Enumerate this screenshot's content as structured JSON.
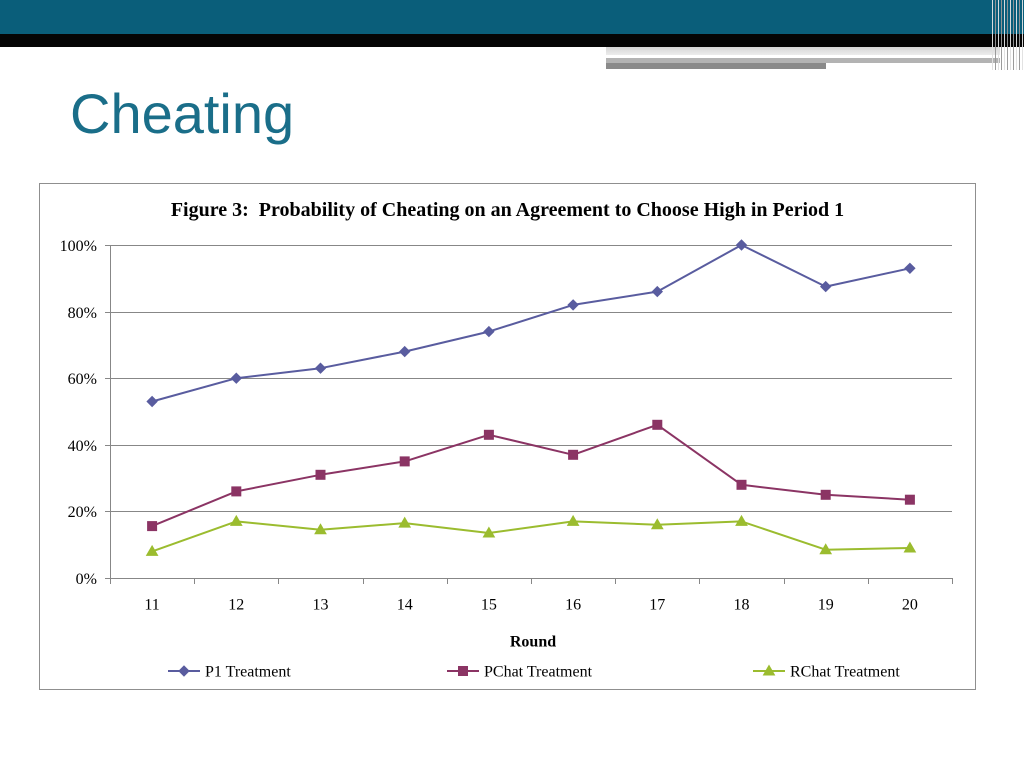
{
  "slide": {
    "title": "Cheating"
  },
  "colors": {
    "header_band": "#0a5e7a",
    "header_dark_band": "#050505",
    "title": "#1a6e89",
    "gridline": "#878787",
    "chart_border": "#8f8f8f"
  },
  "chart_data": {
    "type": "line",
    "title": "Figure 3:  Probability of Cheating on an Agreement to Choose High in Period 1",
    "xlabel": "Round",
    "categories": [
      "11",
      "12",
      "13",
      "14",
      "15",
      "16",
      "17",
      "18",
      "19",
      "20"
    ],
    "ylim": [
      0,
      100
    ],
    "y_ticks": [
      0,
      20,
      40,
      60,
      80,
      100
    ],
    "y_tick_labels": [
      "0%",
      "20%",
      "40%",
      "60%",
      "80%",
      "100%"
    ],
    "grid": true,
    "legend_position": "bottom",
    "series": [
      {
        "name": "P1 Treatment",
        "color": "#595c9f",
        "marker": "diamond",
        "values": [
          53,
          60,
          63,
          68,
          74,
          82,
          86,
          100,
          87.5,
          93
        ]
      },
      {
        "name": "PChat Treatment",
        "color": "#8b3464",
        "marker": "square",
        "values": [
          15.6,
          26,
          31,
          35,
          43,
          37,
          46,
          28,
          25,
          23.5
        ]
      },
      {
        "name": "RChat Treatment",
        "color": "#9bbc2f",
        "marker": "triangle",
        "values": [
          8,
          17,
          14.5,
          16.5,
          13.5,
          17,
          16,
          17,
          8.5,
          9
        ]
      }
    ]
  }
}
